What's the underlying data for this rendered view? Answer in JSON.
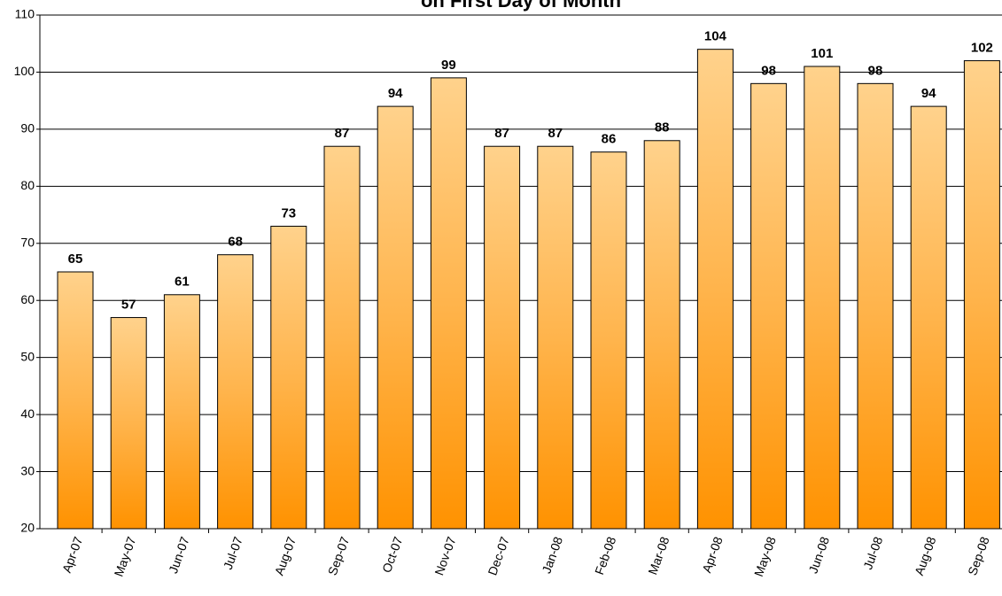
{
  "chart_data": {
    "type": "bar",
    "title": "on First Day of Month",
    "categories": [
      "Apr-07",
      "May-07",
      "Jun-07",
      "Jul-07",
      "Aug-07",
      "Sep-07",
      "Oct-07",
      "Nov-07",
      "Dec-07",
      "Jan-08",
      "Feb-08",
      "Mar-08",
      "Apr-08",
      "May-08",
      "Jun-08",
      "Jul-08",
      "Aug-08",
      "Sep-08"
    ],
    "values": [
      65,
      57,
      61,
      68,
      73,
      87,
      94,
      99,
      87,
      87,
      86,
      88,
      104,
      98,
      101,
      98,
      94,
      102
    ],
    "color": "#ff9a10",
    "ylim": [
      20,
      110
    ],
    "yticks": [
      20,
      30,
      40,
      50,
      60,
      70,
      80,
      90,
      100,
      110
    ],
    "grid": true
  }
}
